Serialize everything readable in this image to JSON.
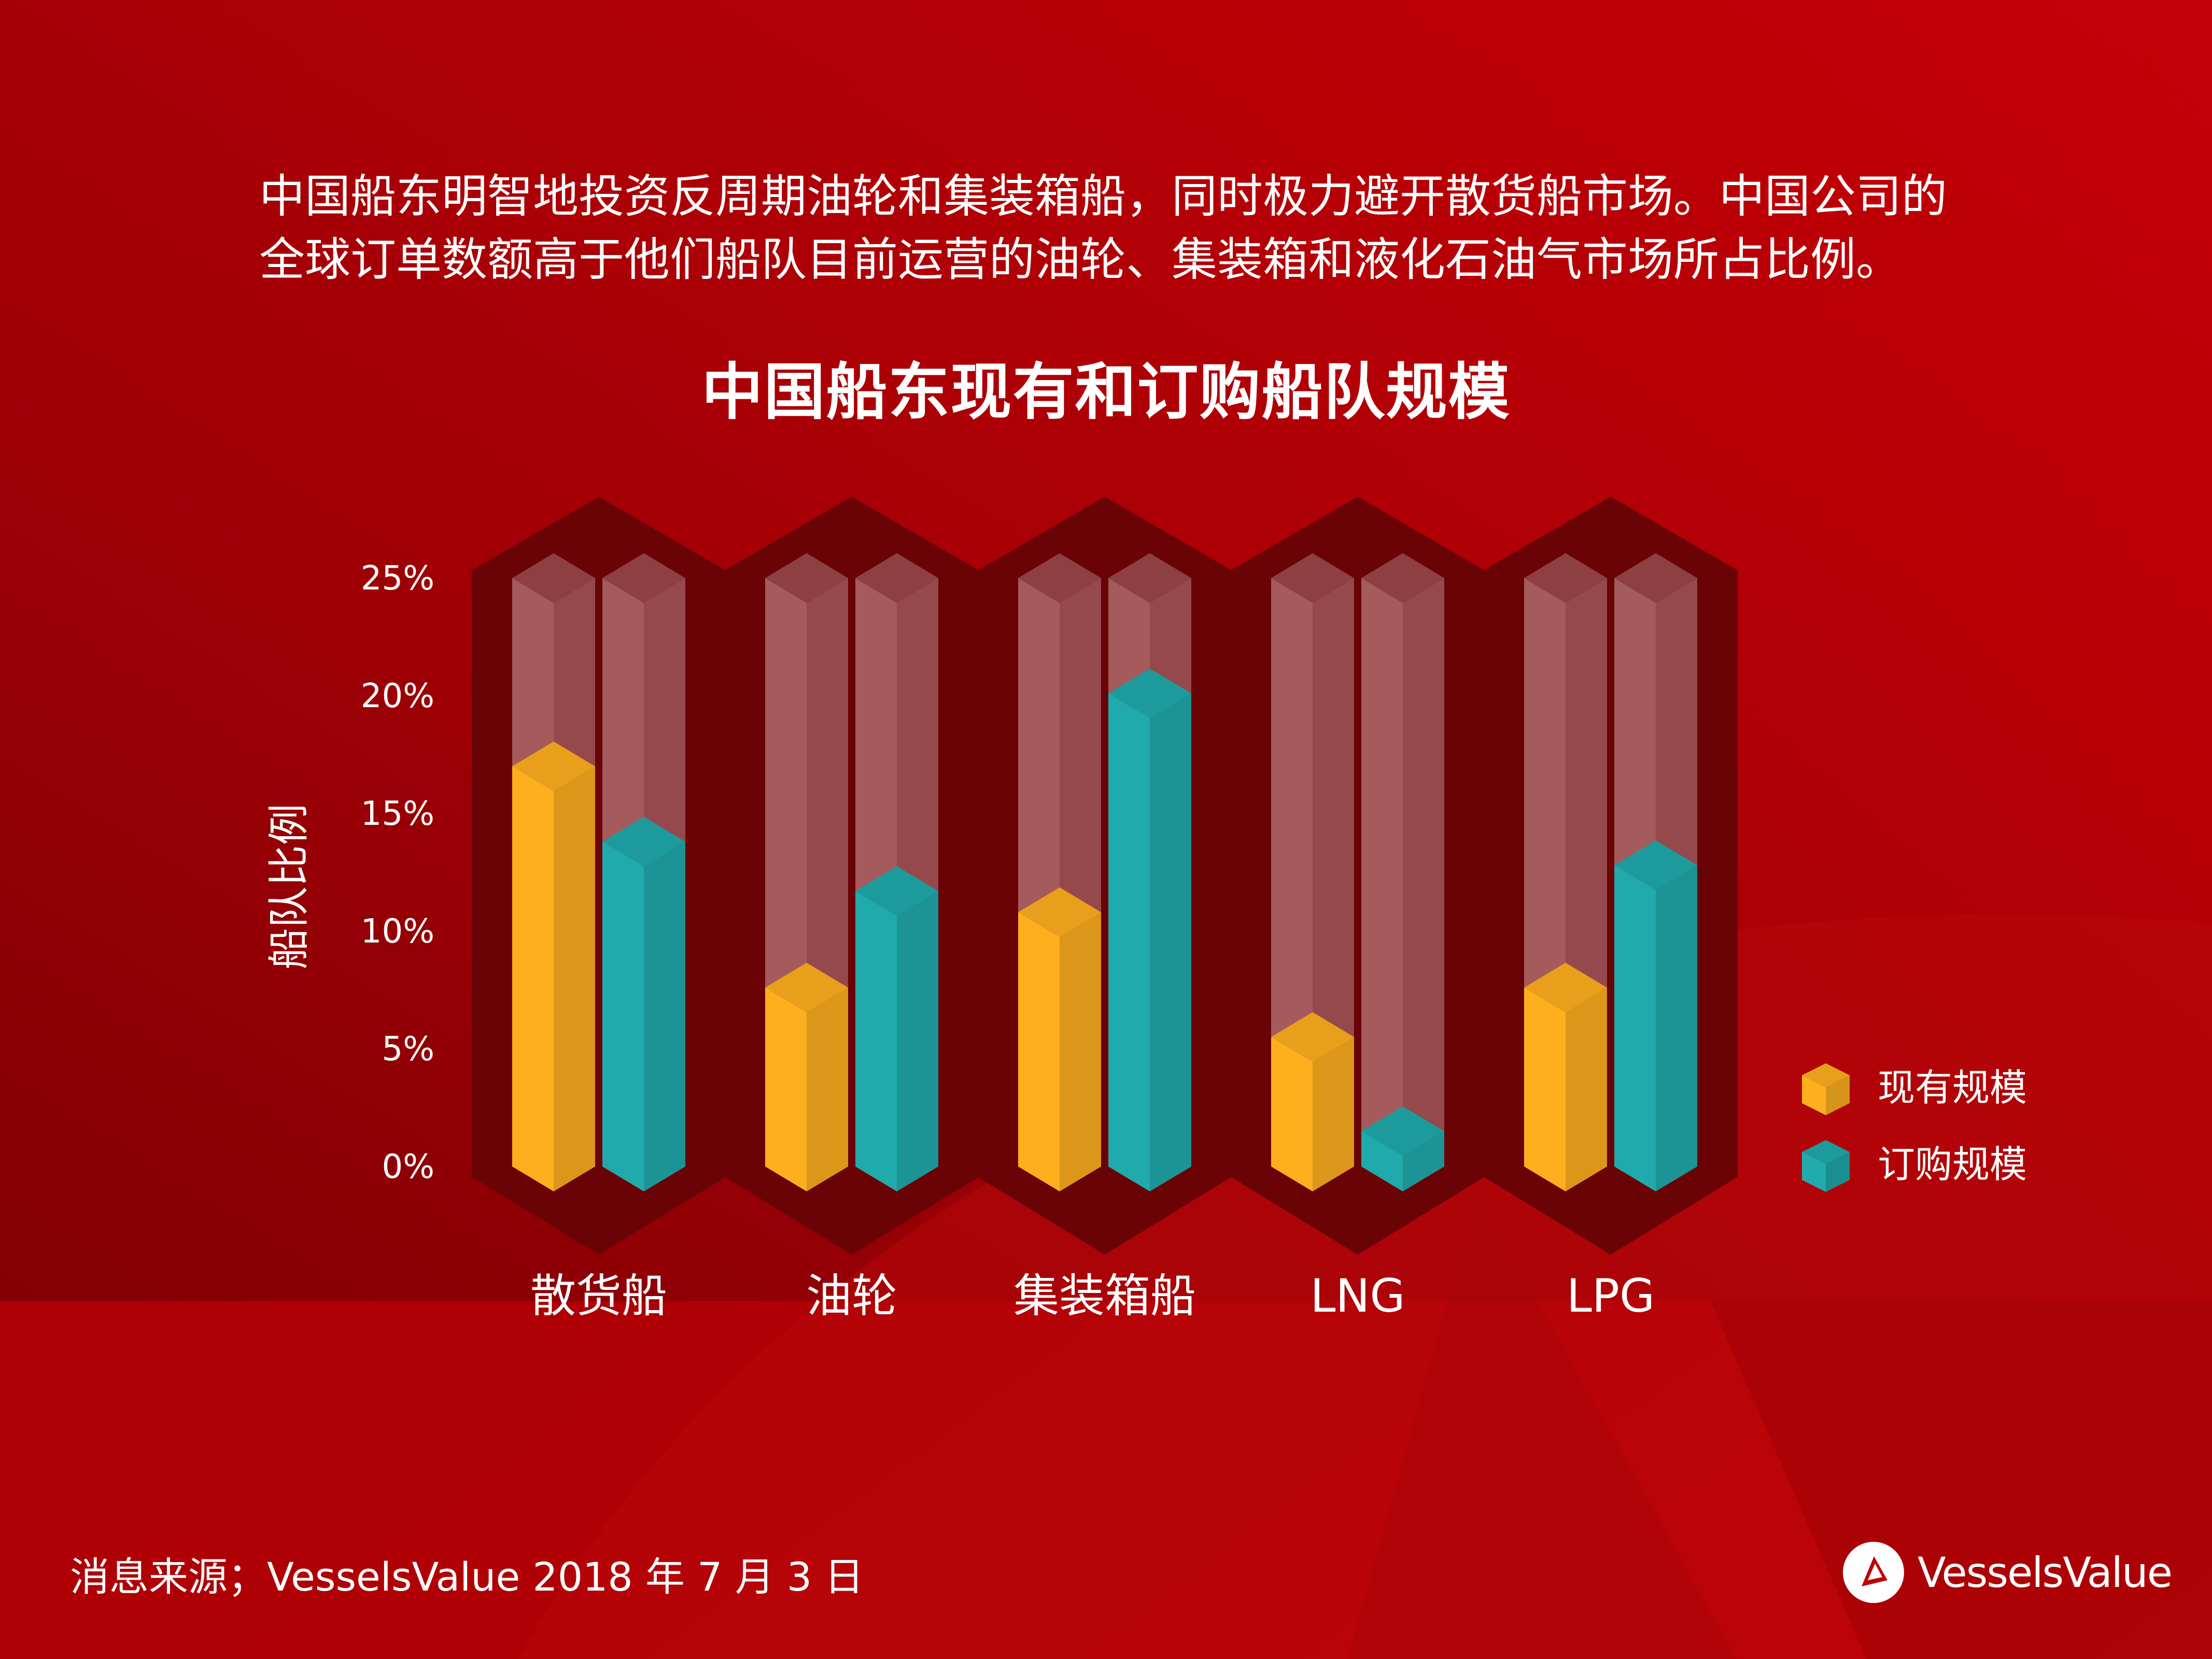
{
  "intro": {
    "line1": "中国船东明智地投资反周期油轮和集装箱船，同时极力避开散货船市场。中国公司的",
    "line2": "全球订单数额高于他们船队目前运营的油轮、集装箱和液化石油气市场所占比例。"
  },
  "source": "消息来源；VesselsValue 2018 年 7 月 3 日",
  "logo": {
    "text": "VesselsValue",
    "icon": "play-triangle-icon"
  },
  "colors": {
    "existing": "#f4a81d",
    "ordered": "#1fa3a4",
    "background": "#b30003"
  },
  "chart_data": {
    "type": "bar",
    "title": "中国船东现有和订购船队规模",
    "ylabel": "船队比例",
    "xlabel": "",
    "ylim": [
      0,
      25
    ],
    "yticks": [
      "0%",
      "5%",
      "10%",
      "15%",
      "20%",
      "25%"
    ],
    "categories": [
      "散货船",
      "油轮",
      "集装箱船",
      "LNG",
      "LPG"
    ],
    "series": [
      {
        "name": "现有规模",
        "values": [
          17,
          7.6,
          10.8,
          5.5,
          7.6
        ]
      },
      {
        "name": "订购规模",
        "values": [
          13.8,
          11.7,
          20.1,
          1.5,
          12.8
        ]
      }
    ],
    "legend": "right"
  }
}
